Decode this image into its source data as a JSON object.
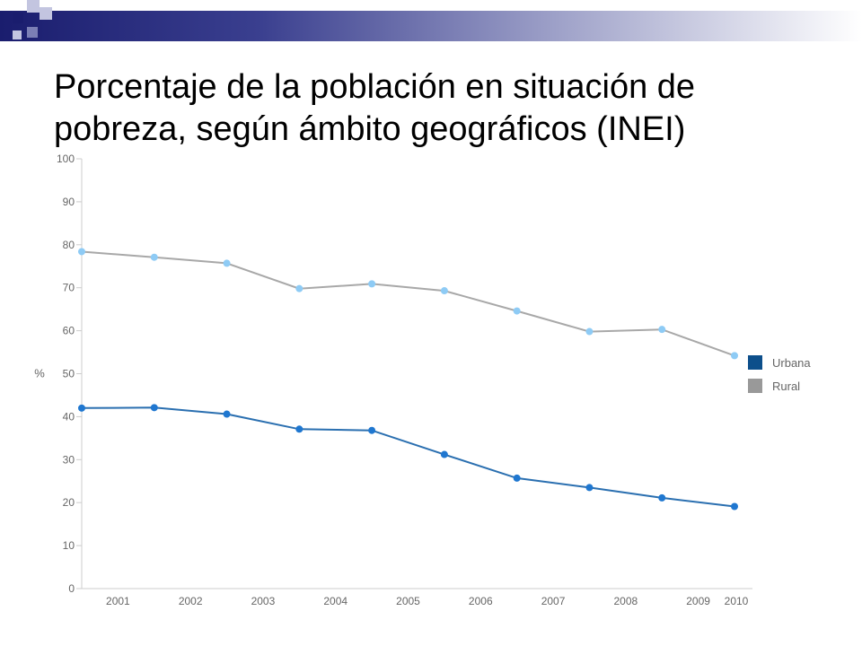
{
  "header": {
    "title_line1": "Porcentaje de la población en situación de",
    "title_line2": "pobreza, según ámbito geográficos (INEI)"
  },
  "chart_data": {
    "type": "line",
    "title": "Porcentaje de la población en situación de pobreza, según ámbito geográficos (INEI)",
    "xlabel": "",
    "ylabel": "%",
    "ylim": [
      0,
      100
    ],
    "yticks": [
      0,
      10,
      20,
      30,
      40,
      50,
      60,
      70,
      80,
      90,
      100
    ],
    "categories": [
      "2001",
      "2002",
      "2003",
      "2004",
      "2005",
      "2006",
      "2007",
      "2008",
      "2009",
      "2010"
    ],
    "grid": false,
    "legend": "right",
    "series": [
      {
        "name": "Urbana",
        "legend_color": "#0d4f8b",
        "line_color": "#2a6fb0",
        "marker_color": "#1f77d0",
        "values": [
          42.0,
          42.1,
          40.6,
          37.1,
          36.8,
          31.2,
          25.7,
          23.5,
          21.1,
          19.1
        ]
      },
      {
        "name": "Rural",
        "legend_color": "#999999",
        "line_color": "#a8a8a8",
        "marker_color": "#8ecbf5",
        "values": [
          78.4,
          77.1,
          75.7,
          69.8,
          70.9,
          69.3,
          64.6,
          59.8,
          60.3,
          54.2
        ]
      }
    ]
  }
}
